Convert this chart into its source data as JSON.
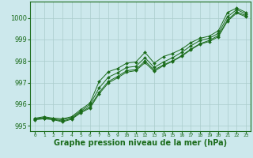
{
  "xlabel": "Graphe pression niveau de la mer (hPa)",
  "bg_color": "#cce8ec",
  "grid_color": "#aacccc",
  "line_color": "#1a6b1a",
  "marker_color": "#1a6b1a",
  "xlim": [
    -0.5,
    23.5
  ],
  "ylim": [
    994.75,
    1000.75
  ],
  "yticks": [
    995,
    996,
    997,
    998,
    999,
    1000
  ],
  "xticks": [
    0,
    1,
    2,
    3,
    4,
    5,
    6,
    7,
    8,
    9,
    10,
    11,
    12,
    13,
    14,
    15,
    16,
    17,
    18,
    19,
    20,
    21,
    22,
    23
  ],
  "lines": [
    [
      995.35,
      995.42,
      995.35,
      995.32,
      995.42,
      995.75,
      996.05,
      997.05,
      997.5,
      997.65,
      997.9,
      997.95,
      998.4,
      997.9,
      998.2,
      998.35,
      998.55,
      998.85,
      999.05,
      999.15,
      999.4,
      1000.25,
      1000.45,
      1000.25
    ],
    [
      995.32,
      995.38,
      995.32,
      995.28,
      995.38,
      995.68,
      995.98,
      996.75,
      997.25,
      997.45,
      997.7,
      997.75,
      998.15,
      997.7,
      997.95,
      998.15,
      998.4,
      998.7,
      998.95,
      999.05,
      999.28,
      1000.05,
      1000.38,
      1000.18
    ],
    [
      995.3,
      995.35,
      995.3,
      995.22,
      995.33,
      995.63,
      995.88,
      996.55,
      997.05,
      997.28,
      997.55,
      997.6,
      998.0,
      997.58,
      997.82,
      998.0,
      998.25,
      998.55,
      998.8,
      998.95,
      999.18,
      999.9,
      1000.28,
      1000.1
    ],
    [
      995.28,
      995.32,
      995.28,
      995.18,
      995.3,
      995.6,
      995.82,
      996.48,
      996.98,
      997.22,
      997.48,
      997.55,
      997.92,
      997.52,
      997.78,
      997.98,
      998.22,
      998.52,
      998.78,
      998.9,
      999.12,
      999.85,
      1000.22,
      1000.05
    ]
  ],
  "xlabel_fontsize": 7,
  "ytick_fontsize": 6,
  "xtick_fontsize": 4.5
}
